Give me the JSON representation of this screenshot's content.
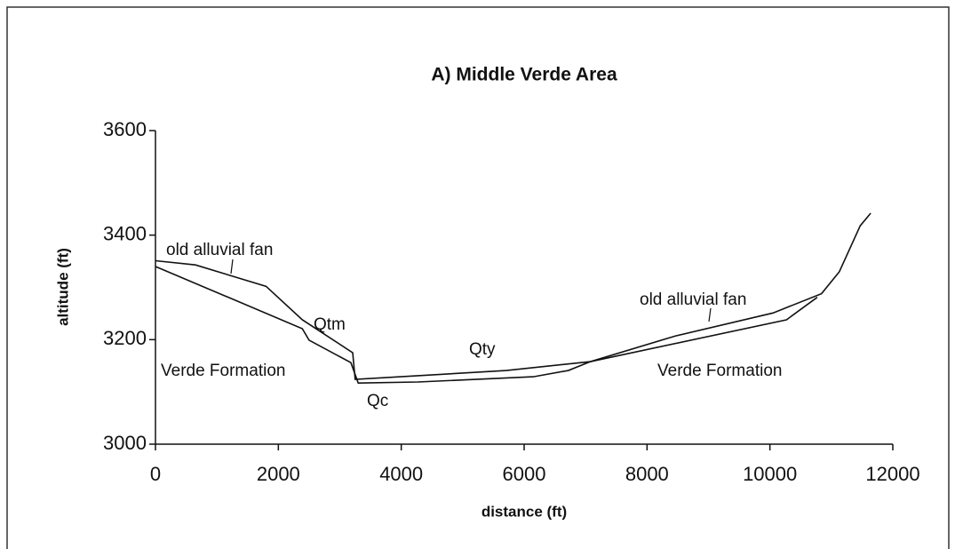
{
  "chart_data": {
    "type": "line",
    "title": "A) Middle Verde Area",
    "xlabel": "distance (ft)",
    "ylabel": "altitude (ft)",
    "xlim": [
      0,
      12000
    ],
    "xticks": [
      0,
      2000,
      4000,
      6000,
      8000,
      10000,
      12000
    ],
    "ylim": [
      3000,
      3600
    ],
    "yticks": [
      3000,
      3200,
      3400,
      3600
    ],
    "grid": false,
    "series": [
      {
        "color": "#111111",
        "x": [
          0,
          650,
          1800,
          2390,
          3210,
          3250,
          4270,
          5710,
          7080,
          8460,
          10050,
          10840,
          11130,
          11470,
          11640
        ],
        "values": [
          3351,
          3343,
          3302,
          3238,
          3175,
          3124,
          3131,
          3141,
          3158,
          3207,
          3251,
          3288,
          3330,
          3418,
          3442
        ]
      },
      {
        "color": "#111111",
        "x": [
          0,
          2390,
          2500,
          3180,
          3300,
          4270,
          6150,
          6720,
          7080,
          10270,
          10770
        ],
        "values": [
          3340,
          3221,
          3199,
          3156,
          3117,
          3119,
          3129,
          3141,
          3158,
          3238,
          3281
        ]
      }
    ],
    "annotations": [
      "old alluvial fan",
      "Qtm",
      "Verde Formation",
      "Qc",
      "Qty",
      "old alluvial fan",
      "Verde Formation"
    ]
  }
}
